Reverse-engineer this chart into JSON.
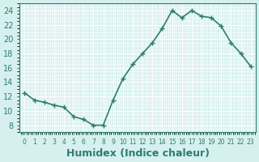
{
  "x": [
    0,
    1,
    2,
    3,
    4,
    5,
    6,
    7,
    8,
    9,
    10,
    11,
    12,
    13,
    14,
    15,
    16,
    17,
    18,
    19,
    20,
    21,
    22,
    23
  ],
  "y": [
    12.5,
    11.5,
    11.2,
    10.8,
    10.5,
    9.2,
    8.8,
    8.0,
    8.0,
    11.5,
    14.5,
    16.5,
    18.0,
    19.5,
    21.5,
    24.0,
    23.0,
    24.0,
    23.2,
    23.0,
    21.8,
    19.5,
    18.0,
    16.2
  ],
  "line_color": "#2e7d6e",
  "marker": "+",
  "marker_size": 5,
  "linewidth": 1.2,
  "xlabel": "Humidex (Indice chaleur)",
  "xlabel_fontsize": 9,
  "bg_color": "#d6f0ef",
  "grid_color": "#ffffff",
  "tick_color": "#2e7d6e",
  "label_color": "#2e7d6e",
  "xlim": [
    -0.5,
    23.5
  ],
  "ylim": [
    7,
    25
  ],
  "yticks": [
    8,
    10,
    12,
    14,
    16,
    18,
    20,
    22,
    24
  ],
  "xtick_labels": [
    "0",
    "1",
    "2",
    "3",
    "4",
    "5",
    "6",
    "7",
    "8",
    "9",
    "10",
    "11",
    "12",
    "13",
    "14",
    "15",
    "16",
    "17",
    "18",
    "19",
    "20",
    "21",
    "22",
    "23"
  ]
}
